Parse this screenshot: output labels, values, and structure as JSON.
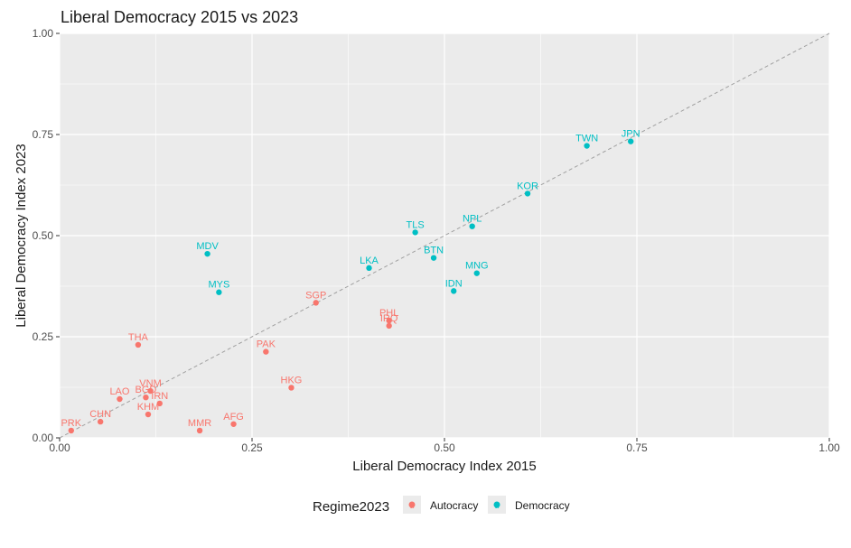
{
  "chart_data": {
    "type": "scatter",
    "title": "Liberal Democracy 2015 vs 2023",
    "xlabel": "Liberal Democracy Index 2015",
    "ylabel": "Liberal Democracy Index 2023",
    "xlim": [
      0,
      1
    ],
    "ylim": [
      0,
      1
    ],
    "x_ticks": [
      "0.00",
      "0.25",
      "0.50",
      "0.75",
      "1.00"
    ],
    "y_ticks": [
      "0.00",
      "0.25",
      "0.50",
      "0.75",
      "1.00"
    ],
    "grid": true,
    "reference_line": "y = x (dashed)",
    "legend": {
      "title": "Regime2023",
      "placement": "bottom",
      "entries": [
        {
          "name": "Autocracy",
          "color": "#F8766D"
        },
        {
          "name": "Democracy",
          "color": "#00BFC4"
        }
      ]
    },
    "series": [
      {
        "name": "Autocracy",
        "color": "#F8766D",
        "points": [
          {
            "label": "PRK",
            "x": 0.015,
            "y": 0.018
          },
          {
            "label": "CHN",
            "x": 0.053,
            "y": 0.04
          },
          {
            "label": "LAO",
            "x": 0.078,
            "y": 0.096
          },
          {
            "label": "THA",
            "x": 0.102,
            "y": 0.23
          },
          {
            "label": "BGD",
            "x": 0.112,
            "y": 0.1
          },
          {
            "label": "VNM",
            "x": 0.118,
            "y": 0.116
          },
          {
            "label": "KHM",
            "x": 0.115,
            "y": 0.058
          },
          {
            "label": "IRN",
            "x": 0.13,
            "y": 0.085
          },
          {
            "label": "MMR",
            "x": 0.182,
            "y": 0.018
          },
          {
            "label": "AFG",
            "x": 0.226,
            "y": 0.034
          },
          {
            "label": "PAK",
            "x": 0.268,
            "y": 0.213
          },
          {
            "label": "HKG",
            "x": 0.301,
            "y": 0.124
          },
          {
            "label": "SGP",
            "x": 0.333,
            "y": 0.334
          },
          {
            "label": "PHL",
            "x": 0.428,
            "y": 0.29
          },
          {
            "label": "IRQ",
            "x": 0.428,
            "y": 0.277
          }
        ]
      },
      {
        "name": "Democracy",
        "color": "#00BFC4",
        "points": [
          {
            "label": "MDV",
            "x": 0.192,
            "y": 0.455
          },
          {
            "label": "MYS",
            "x": 0.207,
            "y": 0.36
          },
          {
            "label": "LKA",
            "x": 0.402,
            "y": 0.42
          },
          {
            "label": "TLS",
            "x": 0.462,
            "y": 0.508
          },
          {
            "label": "BTN",
            "x": 0.486,
            "y": 0.445
          },
          {
            "label": "IDN",
            "x": 0.512,
            "y": 0.363
          },
          {
            "label": "NPL",
            "x": 0.536,
            "y": 0.523
          },
          {
            "label": "MNG",
            "x": 0.542,
            "y": 0.407
          },
          {
            "label": "KOR",
            "x": 0.608,
            "y": 0.604
          },
          {
            "label": "TWN",
            "x": 0.685,
            "y": 0.722
          },
          {
            "label": "JPN",
            "x": 0.742,
            "y": 0.733
          }
        ]
      }
    ]
  }
}
